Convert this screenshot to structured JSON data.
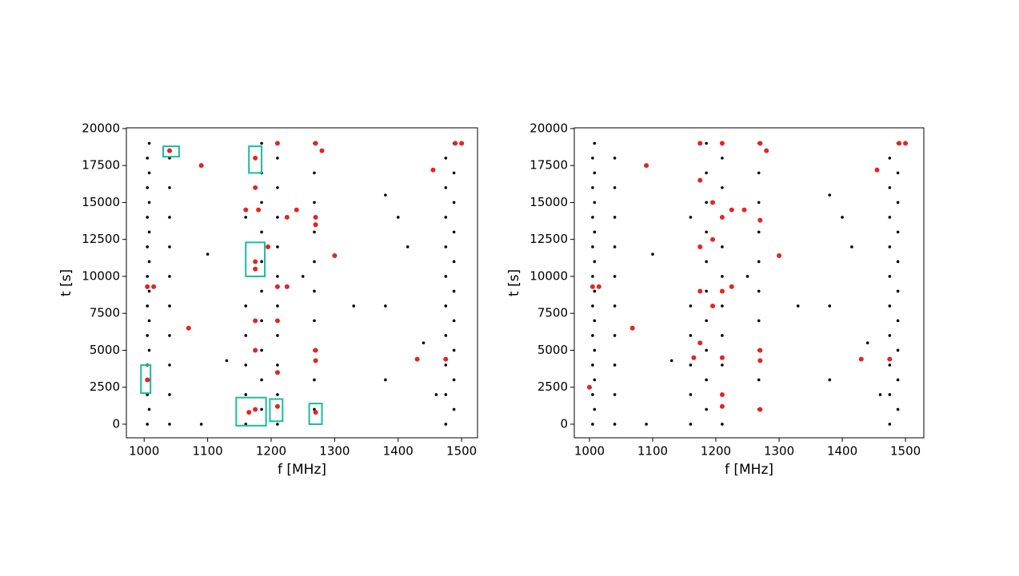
{
  "charts": [
    {
      "type": "scatter",
      "xlabel": "f [MHz]",
      "ylabel": "t [s]",
      "xlim": [
        972,
        1525
      ],
      "ylim": [
        -920,
        20050
      ],
      "xticks": [
        1000,
        1100,
        1200,
        1300,
        1400,
        1500
      ],
      "yticks": [
        0,
        2500,
        5000,
        7500,
        10000,
        12500,
        15000,
        17500,
        20000
      ],
      "series": [
        {
          "color": "#000000",
          "x": [
            1005,
            1005,
            1005,
            1005,
            1005,
            1005,
            1005,
            1005,
            1005,
            1005,
            1008,
            1008,
            1008,
            1008,
            1008,
            1008,
            1008,
            1008,
            1008,
            1008,
            1040,
            1040,
            1040,
            1040,
            1040,
            1040,
            1040,
            1040,
            1040,
            1040,
            1160,
            1160,
            1160,
            1160,
            1160,
            1160,
            1185,
            1185,
            1185,
            1185,
            1185,
            1185,
            1185,
            1185,
            1185,
            1185,
            1210,
            1210,
            1210,
            1210,
            1210,
            1210,
            1210,
            1210,
            1210,
            1210,
            1268,
            1268,
            1268,
            1268,
            1268,
            1268,
            1268,
            1268,
            1268,
            1268,
            1475,
            1475,
            1475,
            1475,
            1475,
            1475,
            1475,
            1475,
            1475,
            1475,
            1488,
            1488,
            1488,
            1488,
            1488,
            1488,
            1488,
            1488,
            1488,
            1488,
            1090,
            1130,
            1250,
            1330,
            1380,
            1380,
            1380,
            1400,
            1440,
            1460,
            1415,
            1100
          ],
          "y": [
            0,
            2000,
            4000,
            6000,
            8000,
            10000,
            12000,
            14000,
            16000,
            18000,
            1000,
            3000,
            5000,
            7000,
            9000,
            11000,
            13000,
            15000,
            17000,
            19000,
            0,
            2000,
            4000,
            6000,
            8000,
            10000,
            12000,
            14000,
            16000,
            18000,
            0,
            2000,
            4000,
            6000,
            8000,
            14000,
            1000,
            3000,
            5000,
            7000,
            9000,
            11000,
            13000,
            15000,
            17000,
            19000,
            0,
            2000,
            4000,
            6000,
            8000,
            10000,
            12000,
            14000,
            16000,
            18000,
            1000,
            3000,
            5000,
            7000,
            9000,
            11000,
            13000,
            15000,
            17000,
            19000,
            0,
            2000,
            4000,
            6000,
            8000,
            10000,
            12000,
            14000,
            16000,
            18000,
            1000,
            3000,
            5000,
            7000,
            9000,
            11000,
            13000,
            15000,
            17000,
            19000,
            0,
            4300,
            10000,
            8000,
            15500,
            8000,
            3000,
            14000,
            5500,
            2000,
            12000,
            11500
          ]
        },
        {
          "color": "#e8231f",
          "x": [
            1005,
            1015,
            1005,
            1040,
            1070,
            1090,
            1175,
            1175,
            1175,
            1175,
            1175,
            1175,
            1175,
            1160,
            1180,
            1195,
            1210,
            1210,
            1210,
            1210,
            1210,
            1225,
            1225,
            1240,
            1270,
            1270,
            1270,
            1270,
            1270,
            1270,
            1280,
            1300,
            1430,
            1455,
            1490,
            1500,
            1475,
            1165
          ],
          "y": [
            9300,
            9300,
            3000,
            18500,
            6500,
            17500,
            18000,
            16000,
            11000,
            10500,
            7000,
            5000,
            1000,
            14500,
            14500,
            12000,
            19000,
            9300,
            7000,
            3500,
            1200,
            14000,
            9300,
            14500,
            19000,
            14000,
            13500,
            5000,
            4300,
            800,
            18500,
            11400,
            4400,
            17200,
            19000,
            19000,
            4400,
            800
          ]
        }
      ],
      "box_color": "#1abc9c",
      "boxes": [
        {
          "x": [
            995,
            1010
          ],
          "y": [
            2100,
            4000
          ]
        },
        {
          "x": [
            1030,
            1055
          ],
          "y": [
            18100,
            18800
          ]
        },
        {
          "x": [
            1165,
            1185
          ],
          "y": [
            17000,
            18800
          ]
        },
        {
          "x": [
            1160,
            1190
          ],
          "y": [
            10000,
            12300
          ]
        },
        {
          "x": [
            1145,
            1192
          ],
          "y": [
            -100,
            1800
          ]
        },
        {
          "x": [
            1198,
            1218
          ],
          "y": [
            200,
            1700
          ]
        },
        {
          "x": [
            1260,
            1280
          ],
          "y": [
            0,
            1400
          ]
        }
      ]
    },
    {
      "type": "scatter",
      "xlabel": "f [MHz]",
      "ylabel": "t [s]",
      "xlim": [
        976,
        1529
      ],
      "ylim": [
        -920,
        20050
      ],
      "xticks": [
        1000,
        1100,
        1200,
        1300,
        1400,
        1500
      ],
      "yticks": [
        0,
        2500,
        5000,
        7500,
        10000,
        12500,
        15000,
        17500,
        20000
      ],
      "series": [
        {
          "color": "#000000",
          "x": [
            1005,
            1005,
            1005,
            1005,
            1005,
            1005,
            1005,
            1005,
            1005,
            1005,
            1008,
            1008,
            1008,
            1008,
            1008,
            1008,
            1008,
            1008,
            1008,
            1008,
            1040,
            1040,
            1040,
            1040,
            1040,
            1040,
            1040,
            1040,
            1040,
            1040,
            1160,
            1160,
            1160,
            1160,
            1160,
            1160,
            1185,
            1185,
            1185,
            1185,
            1185,
            1185,
            1185,
            1185,
            1185,
            1185,
            1210,
            1210,
            1210,
            1210,
            1210,
            1210,
            1210,
            1210,
            1210,
            1210,
            1268,
            1268,
            1268,
            1268,
            1268,
            1268,
            1268,
            1268,
            1268,
            1268,
            1475,
            1475,
            1475,
            1475,
            1475,
            1475,
            1475,
            1475,
            1475,
            1475,
            1488,
            1488,
            1488,
            1488,
            1488,
            1488,
            1488,
            1488,
            1488,
            1488,
            1090,
            1130,
            1250,
            1330,
            1380,
            1380,
            1380,
            1400,
            1440,
            1460,
            1415,
            1100
          ],
          "y": [
            0,
            2000,
            4000,
            6000,
            8000,
            10000,
            12000,
            14000,
            16000,
            18000,
            1000,
            3000,
            5000,
            7000,
            9000,
            11000,
            13000,
            15000,
            17000,
            19000,
            0,
            2000,
            4000,
            6000,
            8000,
            10000,
            12000,
            14000,
            16000,
            18000,
            0,
            2000,
            4000,
            6000,
            8000,
            14000,
            1000,
            3000,
            5000,
            7000,
            9000,
            11000,
            13000,
            15000,
            17000,
            19000,
            0,
            2000,
            4000,
            6000,
            8000,
            10000,
            12000,
            14000,
            16000,
            18000,
            1000,
            3000,
            5000,
            7000,
            9000,
            11000,
            13000,
            15000,
            17000,
            19000,
            0,
            2000,
            4000,
            6000,
            8000,
            10000,
            12000,
            14000,
            16000,
            18000,
            1000,
            3000,
            5000,
            7000,
            9000,
            11000,
            13000,
            15000,
            17000,
            19000,
            0,
            4300,
            10000,
            8000,
            15500,
            8000,
            3000,
            14000,
            5500,
            2000,
            12000,
            11500
          ]
        },
        {
          "color": "#e8231f",
          "x": [
            1000,
            1005,
            1015,
            1068,
            1090,
            1175,
            1175,
            1175,
            1175,
            1175,
            1195,
            1195,
            1195,
            1210,
            1210,
            1210,
            1210,
            1210,
            1210,
            1225,
            1225,
            1245,
            1270,
            1270,
            1270,
            1270,
            1270,
            1280,
            1300,
            1430,
            1455,
            1475,
            1490,
            1500,
            1165
          ],
          "y": [
            2500,
            9300,
            9300,
            6500,
            17500,
            19000,
            16500,
            12000,
            9000,
            5500,
            15000,
            12500,
            8000,
            19000,
            14000,
            9000,
            4500,
            2000,
            1200,
            9300,
            14500,
            14500,
            19000,
            13800,
            5000,
            4300,
            1000,
            18500,
            11400,
            4400,
            17200,
            4400,
            19000,
            19000,
            4500
          ]
        }
      ]
    }
  ]
}
